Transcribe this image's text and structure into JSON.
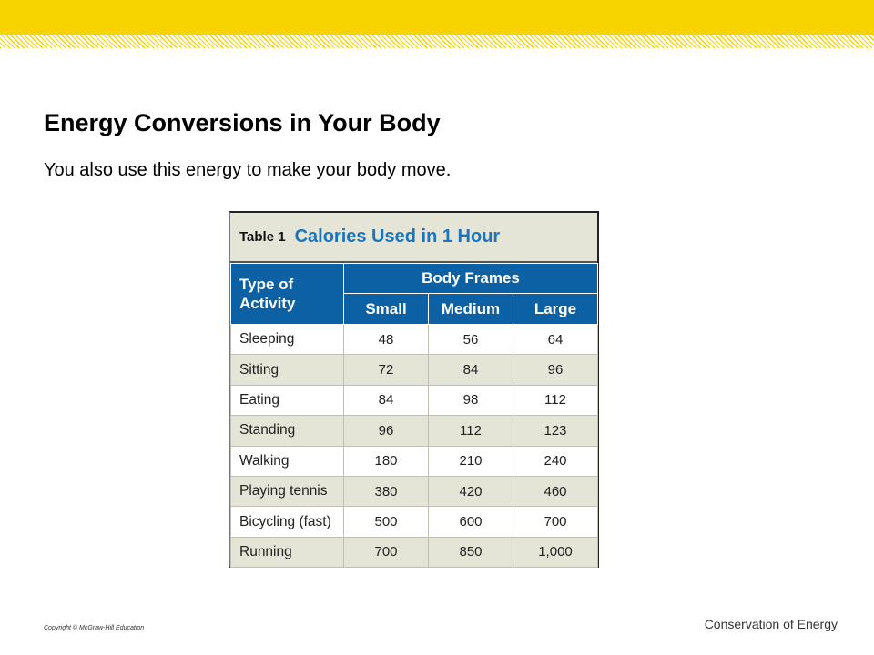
{
  "slide": {
    "title": "Energy Conversions in Your Body",
    "subtitle": "You also use this energy to make your body move."
  },
  "table": {
    "caption_label": "Table 1",
    "caption_title": "Calories Used in 1 Hour",
    "activity_header": "Type of Activity",
    "group_header": "Body Frames",
    "columns": [
      "Small",
      "Medium",
      "Large"
    ],
    "rows": [
      {
        "activity": "Sleeping",
        "values": [
          "48",
          "56",
          "64"
        ]
      },
      {
        "activity": "Sitting",
        "values": [
          "72",
          "84",
          "96"
        ]
      },
      {
        "activity": "Eating",
        "values": [
          "84",
          "98",
          "112"
        ]
      },
      {
        "activity": "Standing",
        "values": [
          "96",
          "112",
          "123"
        ]
      },
      {
        "activity": "Walking",
        "values": [
          "180",
          "210",
          "240"
        ]
      },
      {
        "activity": "Playing tennis",
        "values": [
          "380",
          "420",
          "460"
        ]
      },
      {
        "activity": "Bicycling (fast)",
        "values": [
          "500",
          "600",
          "700"
        ]
      },
      {
        "activity": "Running",
        "values": [
          "700",
          "850",
          "1,000"
        ]
      }
    ]
  },
  "footer": {
    "copyright": "Copyright © McGraw-Hill Education",
    "topic": "Conservation of Energy"
  },
  "colors": {
    "accent_yellow": "#f7d300",
    "header_blue": "#0b61a4",
    "caption_blue": "#1c75bc",
    "row_shade": "#e4e5d6"
  }
}
